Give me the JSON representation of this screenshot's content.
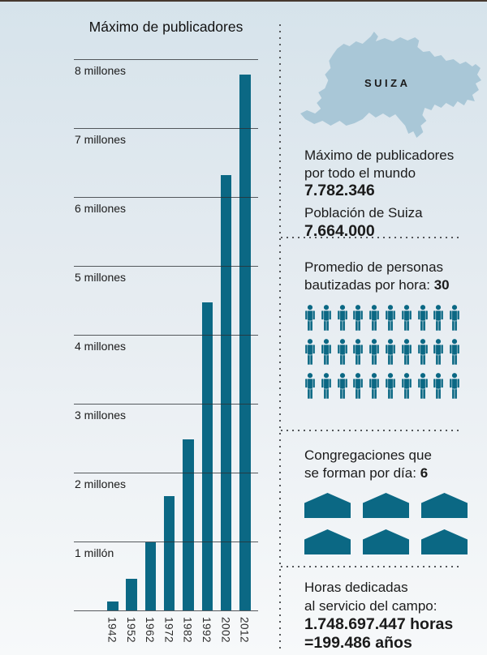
{
  "colors": {
    "teal": "#0b6884",
    "map_fill": "#a9c7d7",
    "background_top": "#d6e3eb",
    "background_bottom": "#f7f9fa"
  },
  "icons": {
    "map": "switzerland-map",
    "person": "person-icon",
    "house": "house-icon"
  },
  "chart_data": {
    "type": "bar",
    "title": "Máximo de publicadores",
    "categories": [
      "1942",
      "1952",
      "1962",
      "1972",
      "1982",
      "1992",
      "2002",
      "2012"
    ],
    "values_millions": [
      0.13,
      0.46,
      0.99,
      1.66,
      2.48,
      4.48,
      6.32,
      7.78
    ],
    "unit": "millones de publicadores",
    "ytick_labels_top_to_bottom": [
      "8 millones",
      "7 millones",
      "6 millones",
      "5 millones",
      "4 millones",
      "3 millones",
      "2 millones",
      "1 millón"
    ],
    "ylim": [
      0,
      8.2
    ],
    "grid": true,
    "legend": false,
    "bar_color": "#0b6884",
    "note_max_value_exact": "7.782.346"
  },
  "map": {
    "label": "SUIZA"
  },
  "stats": {
    "publishers_line1": "Máximo de publicadores",
    "publishers_line2": "por todo el mundo",
    "publishers_value": "7.782.346",
    "population_label": "Población de Suiza",
    "population_value": "7.664.000"
  },
  "baptized": {
    "line1": "Promedio de personas",
    "line2_text": "bautizadas por hora: ",
    "line2_value": "30",
    "icon_count": 30
  },
  "congregations": {
    "line1": "Congregaciones que",
    "line2_text": "se forman por día: ",
    "line2_value": "6",
    "icon_count": 6
  },
  "hours": {
    "line1": "Horas dedicadas",
    "line2": "al servicio del campo:",
    "value_line1": "1.748.697.447 horas",
    "value_line2": "=199.486 años"
  }
}
